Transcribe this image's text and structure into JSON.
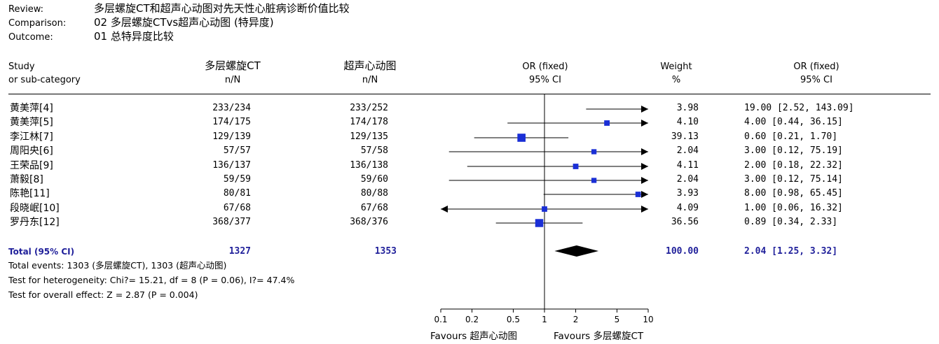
{
  "review_header": {
    "review_label": "Review:",
    "review_value": "多层螺旋CT和超声心动图对先天性心脏病诊断价值比较",
    "comparison_label": "Comparison:",
    "comparison_value": "02 多层螺旋CTvs超声心动图 (特异度)",
    "outcome_label": "Outcome:",
    "outcome_value": "01 总特异度比较"
  },
  "columns": {
    "study_line1": "Study",
    "study_line2": "or sub-category",
    "group1_line1": "多层螺旋CT",
    "group1_line2": "n/N",
    "group2_line1": "超声心动图",
    "group2_line2": "n/N",
    "plot_line1": "OR (fixed)",
    "plot_line2": "95% CI",
    "weight_line1": "Weight",
    "weight_line2": "%",
    "ci_line1": "OR (fixed)",
    "ci_line2": "95% CI"
  },
  "studies": [
    {
      "name": "黄美萍[4]",
      "g1": "233/234",
      "g2": "233/252",
      "weight": "3.98",
      "ci_text": "19.00 [2.52, 143.09]"
    },
    {
      "name": "黄美萍[5]",
      "g1": "174/175",
      "g2": "174/178",
      "weight": "4.10",
      "ci_text": "4.00 [0.44, 36.15]"
    },
    {
      "name": "李江林[7]",
      "g1": "129/139",
      "g2": "129/135",
      "weight": "39.13",
      "ci_text": "0.60 [0.21, 1.70]"
    },
    {
      "name": "周阳央[6]",
      "g1": "57/57",
      "g2": "57/58",
      "weight": "2.04",
      "ci_text": "3.00 [0.12, 75.19]"
    },
    {
      "name": "王荣品[9]",
      "g1": "136/137",
      "g2": "136/138",
      "weight": "4.11",
      "ci_text": "2.00 [0.18, 22.32]"
    },
    {
      "name": "萧毅[8]",
      "g1": "59/59",
      "g2": "59/60",
      "weight": "2.04",
      "ci_text": "3.00 [0.12, 75.14]"
    },
    {
      "name": "陈艳[11]",
      "g1": "80/81",
      "g2": "80/88",
      "weight": "3.93",
      "ci_text": "8.00 [0.98, 65.45]"
    },
    {
      "name": "段晓岷[10]",
      "g1": "67/68",
      "g2": "67/68",
      "weight": "4.09",
      "ci_text": "1.00 [0.06, 16.32]"
    },
    {
      "name": "罗丹东[12]",
      "g1": "368/377",
      "g2": "368/376",
      "weight": "36.56",
      "ci_text": "0.89 [0.34, 2.33]"
    }
  ],
  "total": {
    "label": "Total (95% CI)",
    "g1": "1327",
    "g2": "1353",
    "weight": "100.00",
    "ci_text": "2.04 [1.25, 3.32]",
    "events": "Total events: 1303 (多层螺旋CT), 1303 (超声心动图)",
    "heterogeneity": "Test for heterogeneity: Chi?= 15.21, df = 8 (P = 0.06), I?= 47.4%",
    "overall": "Test for overall effect: Z = 2.87 (P = 0.004)"
  },
  "axis": {
    "ticks": [
      "0.1",
      "0.2",
      "0.5",
      "1",
      "2",
      "5",
      "10"
    ],
    "favours_left": "Favours 超声心动图",
    "favours_right": "Favours 多层螺旋CT"
  },
  "chart_data": {
    "type": "forest",
    "scale": "log",
    "xlim": [
      0.1,
      10
    ],
    "reference_line": 1,
    "marker_color": "#1a2fd6",
    "points": [
      {
        "study": "黄美萍[4]",
        "or": 19.0,
        "lo": 2.52,
        "hi": 143.09,
        "weight": 3.98
      },
      {
        "study": "黄美萍[5]",
        "or": 4.0,
        "lo": 0.44,
        "hi": 36.15,
        "weight": 4.1
      },
      {
        "study": "李江林[7]",
        "or": 0.6,
        "lo": 0.21,
        "hi": 1.7,
        "weight": 39.13
      },
      {
        "study": "周阳央[6]",
        "or": 3.0,
        "lo": 0.12,
        "hi": 75.19,
        "weight": 2.04
      },
      {
        "study": "王荣品[9]",
        "or": 2.0,
        "lo": 0.18,
        "hi": 22.32,
        "weight": 4.11
      },
      {
        "study": "萧毅[8]",
        "or": 3.0,
        "lo": 0.12,
        "hi": 75.14,
        "weight": 2.04
      },
      {
        "study": "陈艳[11]",
        "or": 8.0,
        "lo": 0.98,
        "hi": 65.45,
        "weight": 3.93
      },
      {
        "study": "段晓岷[10]",
        "or": 1.0,
        "lo": 0.06,
        "hi": 16.32,
        "weight": 4.09
      },
      {
        "study": "罗丹东[12]",
        "or": 0.89,
        "lo": 0.34,
        "hi": 2.33,
        "weight": 36.56
      }
    ],
    "pooled": {
      "or": 2.04,
      "lo": 1.25,
      "hi": 3.32,
      "weight": 100.0
    }
  }
}
